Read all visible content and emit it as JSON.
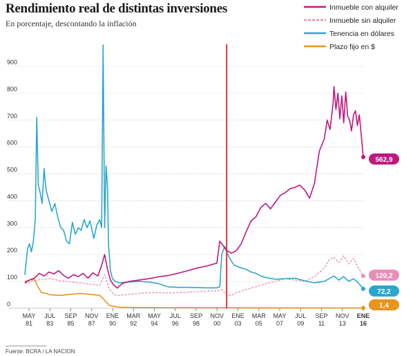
{
  "header": {
    "title": "Rendimiento real de distintas inversiones",
    "subtitle": "En porcentaje, descontando la inflación"
  },
  "footer": {
    "source": "Fuente: BCRA / LA NACION"
  },
  "colors": {
    "inmueble_con": "#c0177f",
    "inmueble_sin": "#e88fb8",
    "dolares": "#2ba6cf",
    "plazo_fijo": "#e8941e",
    "marker": "#e8322b",
    "grid": "#c9c9c9"
  },
  "chart_data": {
    "type": "line",
    "title": "Rendimiento real de distintas inversiones",
    "subtitle": "En porcentaje, descontando la inflación",
    "xlabel": "",
    "ylabel": "",
    "ylim": [
      0,
      900
    ],
    "y_ticks": [
      "0",
      "100",
      "200",
      "300",
      "400",
      "500",
      "600",
      "700",
      "800",
      "900"
    ],
    "x_ticks": [
      {
        "month": "MAY",
        "year": "81",
        "bold": false
      },
      {
        "month": "JUL",
        "year": "83",
        "bold": false
      },
      {
        "month": "SEP",
        "year": "85",
        "bold": false
      },
      {
        "month": "NOV",
        "year": "87",
        "bold": false
      },
      {
        "month": "ENE",
        "year": "90",
        "bold": false
      },
      {
        "month": "MAR",
        "year": "92",
        "bold": false
      },
      {
        "month": "MAY",
        "year": "94",
        "bold": false
      },
      {
        "month": "JUL",
        "year": "96",
        "bold": false
      },
      {
        "month": "SEP",
        "year": "98",
        "bold": false
      },
      {
        "month": "NOV",
        "year": "00",
        "bold": false
      },
      {
        "month": "ENE",
        "year": "03",
        "bold": false
      },
      {
        "month": "MAR",
        "year": "05",
        "bold": false
      },
      {
        "month": "MAY",
        "year": "07",
        "bold": false
      },
      {
        "month": "JUL",
        "year": "09",
        "bold": false
      },
      {
        "month": "SEP",
        "year": "11",
        "bold": false
      },
      {
        "month": "NOV",
        "year": "13",
        "bold": false
      },
      {
        "month": "ENE",
        "year": "16",
        "bold": true
      }
    ],
    "grid": true,
    "legend_position": "top-right",
    "marker_line_x": 2002.0,
    "series": [
      {
        "name": "Inmueble con alquiler",
        "key": "inmueble_con",
        "style": "solid",
        "end_label": "562,9",
        "points": [
          [
            1981.33,
            95
          ],
          [
            1981.8,
            105
          ],
          [
            1982.3,
            112
          ],
          [
            1982.8,
            130
          ],
          [
            1983.3,
            120
          ],
          [
            1983.8,
            135
          ],
          [
            1984.3,
            128
          ],
          [
            1984.8,
            140
          ],
          [
            1985.3,
            122
          ],
          [
            1985.8,
            112
          ],
          [
            1986.3,
            125
          ],
          [
            1986.8,
            118
          ],
          [
            1987.3,
            130
          ],
          [
            1987.8,
            112
          ],
          [
            1988.3,
            132
          ],
          [
            1988.8,
            120
          ],
          [
            1989.2,
            160
          ],
          [
            1989.5,
            200
          ],
          [
            1989.8,
            145
          ],
          [
            1990.1,
            105
          ],
          [
            1990.4,
            88
          ],
          [
            1990.8,
            75
          ],
          [
            1991.3,
            92
          ],
          [
            1992.0,
            100
          ],
          [
            1993.0,
            105
          ],
          [
            1994.0,
            110
          ],
          [
            1995.0,
            117
          ],
          [
            1996.0,
            122
          ],
          [
            1997.0,
            130
          ],
          [
            1998.0,
            140
          ],
          [
            1999.0,
            150
          ],
          [
            2000.0,
            158
          ],
          [
            2001.0,
            168
          ],
          [
            2001.3,
            250
          ],
          [
            2001.6,
            235
          ],
          [
            2002.0,
            215
          ],
          [
            2002.5,
            205
          ],
          [
            2003.0,
            215
          ],
          [
            2003.5,
            240
          ],
          [
            2004.0,
            285
          ],
          [
            2004.5,
            325
          ],
          [
            2005.0,
            340
          ],
          [
            2005.5,
            375
          ],
          [
            2006.0,
            390
          ],
          [
            2006.5,
            370
          ],
          [
            2007.0,
            395
          ],
          [
            2007.5,
            420
          ],
          [
            2008.0,
            430
          ],
          [
            2008.5,
            445
          ],
          [
            2009.0,
            450
          ],
          [
            2009.5,
            458
          ],
          [
            2010.0,
            440
          ],
          [
            2010.5,
            410
          ],
          [
            2011.0,
            465
          ],
          [
            2011.5,
            585
          ],
          [
            2012.0,
            630
          ],
          [
            2012.3,
            700
          ],
          [
            2012.6,
            665
          ],
          [
            2012.9,
            760
          ],
          [
            2013.0,
            825
          ],
          [
            2013.2,
            740
          ],
          [
            2013.4,
            800
          ],
          [
            2013.6,
            705
          ],
          [
            2013.8,
            790
          ],
          [
            2014.0,
            690
          ],
          [
            2014.2,
            805
          ],
          [
            2014.4,
            715
          ],
          [
            2014.6,
            700
          ],
          [
            2014.8,
            660
          ],
          [
            2015.0,
            720
          ],
          [
            2015.2,
            735
          ],
          [
            2015.4,
            680
          ],
          [
            2015.6,
            720
          ],
          [
            2015.8,
            640
          ],
          [
            2016.0,
            562.9
          ]
        ]
      },
      {
        "name": "Inmueble sin alquiler",
        "key": "inmueble_sin",
        "style": "dashed",
        "end_label": "120,2",
        "points": [
          [
            1981.33,
            92
          ],
          [
            1982.0,
            100
          ],
          [
            1983.0,
            108
          ],
          [
            1984.0,
            110
          ],
          [
            1985.0,
            102
          ],
          [
            1986.0,
            98
          ],
          [
            1987.0,
            95
          ],
          [
            1988.0,
            90
          ],
          [
            1989.0,
            85
          ],
          [
            1989.5,
            125
          ],
          [
            1990.0,
            70
          ],
          [
            1990.5,
            50
          ],
          [
            1991.0,
            48
          ],
          [
            1992.0,
            52
          ],
          [
            1993.0,
            55
          ],
          [
            1994.0,
            58
          ],
          [
            1995.0,
            58
          ],
          [
            1996.0,
            57
          ],
          [
            1997.0,
            58
          ],
          [
            1998.0,
            60
          ],
          [
            1999.0,
            62
          ],
          [
            2000.0,
            64
          ],
          [
            2001.0,
            65
          ],
          [
            2001.5,
            70
          ],
          [
            2002.0,
            50
          ],
          [
            2002.5,
            48
          ],
          [
            2003.0,
            58
          ],
          [
            2004.0,
            70
          ],
          [
            2005.0,
            80
          ],
          [
            2006.0,
            92
          ],
          [
            2007.0,
            100
          ],
          [
            2008.0,
            110
          ],
          [
            2009.0,
            105
          ],
          [
            2010.0,
            100
          ],
          [
            2011.0,
            118
          ],
          [
            2012.0,
            150
          ],
          [
            2012.5,
            180
          ],
          [
            2013.0,
            190
          ],
          [
            2013.5,
            170
          ],
          [
            2014.0,
            195
          ],
          [
            2014.5,
            165
          ],
          [
            2015.0,
            185
          ],
          [
            2015.5,
            150
          ],
          [
            2016.0,
            120.2
          ]
        ]
      },
      {
        "name": "Tenencia en dólares",
        "key": "dolares",
        "style": "solid",
        "end_label": "72,2",
        "points": [
          [
            1981.33,
            125
          ],
          [
            1981.6,
            220
          ],
          [
            1981.8,
            240
          ],
          [
            1982.0,
            210
          ],
          [
            1982.2,
            250
          ],
          [
            1982.4,
            330
          ],
          [
            1982.55,
            710
          ],
          [
            1982.7,
            460
          ],
          [
            1982.9,
            430
          ],
          [
            1983.1,
            390
          ],
          [
            1983.3,
            520
          ],
          [
            1983.5,
            440
          ],
          [
            1983.8,
            400
          ],
          [
            1984.1,
            360
          ],
          [
            1984.4,
            390
          ],
          [
            1984.7,
            340
          ],
          [
            1985.0,
            300
          ],
          [
            1985.3,
            290
          ],
          [
            1985.6,
            250
          ],
          [
            1985.9,
            240
          ],
          [
            1986.2,
            320
          ],
          [
            1986.5,
            275
          ],
          [
            1986.8,
            300
          ],
          [
            1987.1,
            290
          ],
          [
            1987.4,
            330
          ],
          [
            1987.7,
            300
          ],
          [
            1988.0,
            325
          ],
          [
            1988.4,
            260
          ],
          [
            1988.7,
            310
          ],
          [
            1989.0,
            330
          ],
          [
            1989.2,
            300
          ],
          [
            1989.35,
            980
          ],
          [
            1989.5,
            300
          ],
          [
            1989.65,
            530
          ],
          [
            1989.8,
            450
          ],
          [
            1989.9,
            240
          ],
          [
            1990.1,
            140
          ],
          [
            1990.3,
            110
          ],
          [
            1990.6,
            100
          ],
          [
            1991.0,
            95
          ],
          [
            1992.0,
            98
          ],
          [
            1993.0,
            100
          ],
          [
            1994.0,
            98
          ],
          [
            1995.0,
            92
          ],
          [
            1996.0,
            80
          ],
          [
            1997.0,
            78
          ],
          [
            1998.0,
            78
          ],
          [
            1999.0,
            77
          ],
          [
            2000.0,
            76
          ],
          [
            2001.0,
            76
          ],
          [
            2001.3,
            80
          ],
          [
            2001.5,
            200
          ],
          [
            2001.8,
            230
          ],
          [
            2002.0,
            210
          ],
          [
            2002.4,
            180
          ],
          [
            2002.8,
            160
          ],
          [
            2003.5,
            150
          ],
          [
            2004.0,
            145
          ],
          [
            2004.5,
            135
          ],
          [
            2005.0,
            130
          ],
          [
            2005.5,
            120
          ],
          [
            2006.0,
            115
          ],
          [
            2007.0,
            108
          ],
          [
            2008.0,
            110
          ],
          [
            2009.0,
            112
          ],
          [
            2010.0,
            102
          ],
          [
            2011.0,
            95
          ],
          [
            2011.5,
            98
          ],
          [
            2012.0,
            100
          ],
          [
            2012.5,
            110
          ],
          [
            2013.0,
            120
          ],
          [
            2013.5,
            105
          ],
          [
            2014.0,
            118
          ],
          [
            2014.5,
            100
          ],
          [
            2015.0,
            110
          ],
          [
            2015.5,
            95
          ],
          [
            2016.0,
            72.2
          ]
        ]
      },
      {
        "name": "Plazo fijo en $",
        "key": "plazo_fijo",
        "style": "solid",
        "end_label": "1,4",
        "points": [
          [
            1981.33,
            100
          ],
          [
            1981.8,
            105
          ],
          [
            1982.3,
            108
          ],
          [
            1982.6,
            85
          ],
          [
            1983.0,
            60
          ],
          [
            1983.5,
            55
          ],
          [
            1984.0,
            50
          ],
          [
            1985.0,
            48
          ],
          [
            1986.0,
            52
          ],
          [
            1987.0,
            55
          ],
          [
            1988.0,
            52
          ],
          [
            1989.0,
            48
          ],
          [
            1989.5,
            30
          ],
          [
            1990.0,
            10
          ],
          [
            1991.0,
            4
          ],
          [
            1993.0,
            3
          ],
          [
            1996.0,
            2.5
          ],
          [
            1999.0,
            2.2
          ],
          [
            2002.0,
            2
          ],
          [
            2005.0,
            1.8
          ],
          [
            2008.0,
            1.6
          ],
          [
            2011.0,
            1.5
          ],
          [
            2014.0,
            1.4
          ],
          [
            2016.0,
            1.4
          ]
        ]
      }
    ]
  }
}
